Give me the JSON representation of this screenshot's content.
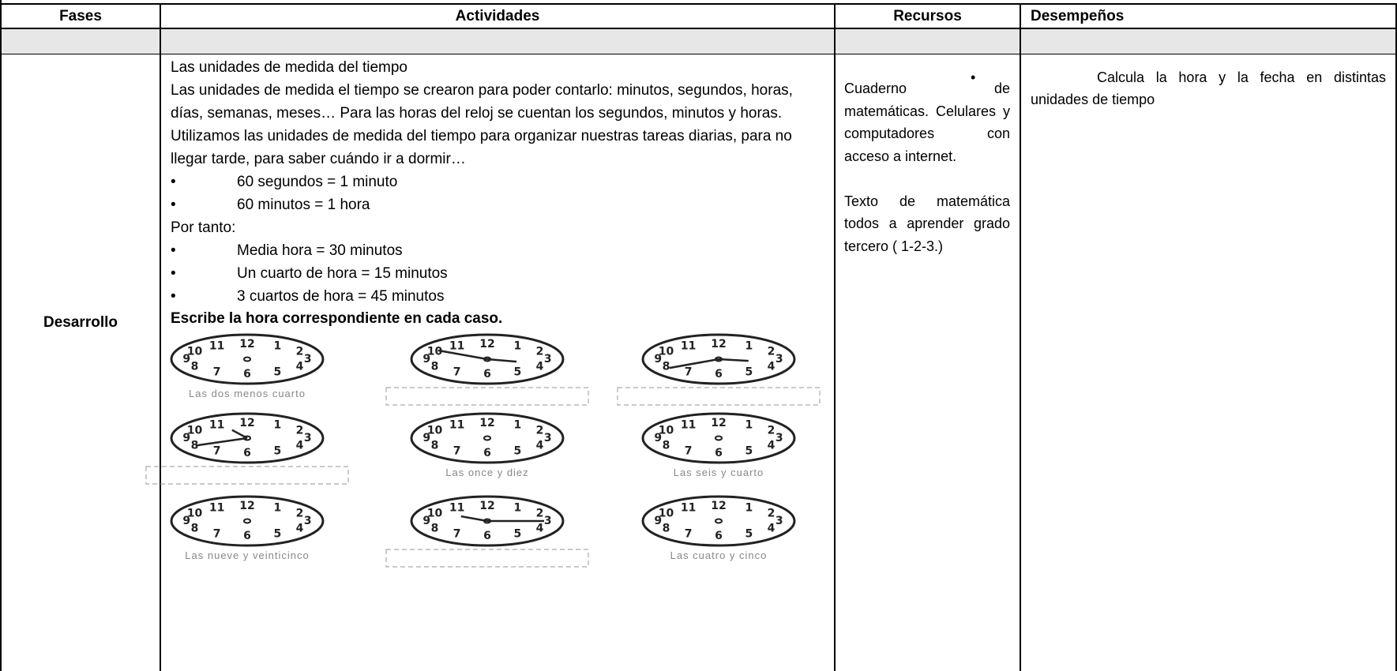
{
  "table": {
    "headers": [
      "Fases",
      "Actividades",
      "Recursos",
      "Desempeños"
    ],
    "row": {
      "fase": "Desarrollo",
      "actividades": {
        "title": "Las unidades de medida del tiempo",
        "paragraph": "Las unidades de medida el tiempo se crearon para poder contarlo: minutos, segundos, horas, días, semanas, meses… Para las horas del reloj se cuentan los segundos, minutos y horas. Utilizamos las unidades de medida del tiempo para organizar nuestras tareas diarias, para no llegar tarde, para saber cuándo ir a dormir…",
        "bullets_1": [
          "60 segundos = 1 minuto",
          "60 minutos = 1 hora"
        ],
        "connector": "Por tanto:",
        "bullets_2": [
          "Media hora = 30 minutos",
          "Un cuarto de hora = 15 minutos",
          "3 cuartos de hora = 45 minutos"
        ],
        "instruction": "Escribe la hora correspondiente en cada caso.",
        "clock_numerals": [
          "12",
          "1",
          "2",
          "3",
          "4",
          "5",
          "6",
          "7",
          "8",
          "9",
          "10",
          "11"
        ],
        "clock_captions": [
          "Las dos menos cuarto",
          null,
          null,
          null,
          "Las once y diez",
          "Las seis y cuarto",
          "Las nueve y veinticinco",
          null,
          "Las cuatro y cinco"
        ]
      },
      "recursos": [
        "Cuaderno de matemáticas. Celulares y computadores con acceso a internet.",
        "Texto de matemática todos a aprender grado tercero ( 1-2-3.)"
      ],
      "desempenos": [
        "Calcula la hora y la fecha en distintas unidades de tiempo"
      ]
    }
  }
}
